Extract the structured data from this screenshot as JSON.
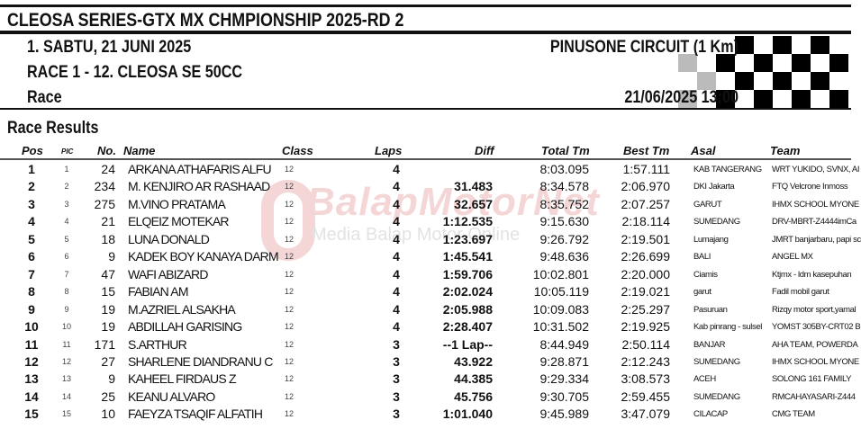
{
  "header": {
    "title": "CLEOSA SERIES-GTX MX CHMPIONSHIP 2025-RD 2",
    "day": "1. SABTU, 21 JUNI 2025",
    "race": "RACE 1 -  12. CLEOSA SE 50CC",
    "session": "Race",
    "circuit": "PINUSONE CIRCUIT (1 Km)",
    "datetime": "21/06/2025  13:00"
  },
  "section_title": "Race Results",
  "watermark": {
    "logo": "BalapMotorNet",
    "tagline": "Media Balap Motor Online"
  },
  "columns": {
    "pos": "Pos",
    "pic": "PIC",
    "no": "No.",
    "name": "Name",
    "class": "Class",
    "laps": "Laps",
    "diff": "Diff",
    "total": "Total Tm",
    "best": "Best Tm",
    "asal": "Asal",
    "team": "Team"
  },
  "rows": [
    {
      "pos": "1",
      "pic": "1",
      "no": "24",
      "name": "ARKANA ATHAFARIS ALFU",
      "class": "12",
      "laps": "4",
      "diff": "",
      "total": "8:03.095",
      "best": "1:57.111",
      "asal": "KAB TANGERANG",
      "team": "WRT YUKIDO, SVNX, AI"
    },
    {
      "pos": "2",
      "pic": "2",
      "no": "234",
      "name": "M. KENJIRO AR RASHAAD",
      "class": "12",
      "laps": "4",
      "diff": "31.483",
      "total": "8:34.578",
      "best": "2:06.970",
      "asal": "DKI Jakarta",
      "team": "FTQ Velcrone Inmoss"
    },
    {
      "pos": "3",
      "pic": "3",
      "no": "275",
      "name": "M.VINO PRATAMA",
      "class": "12",
      "laps": "4",
      "diff": "32.657",
      "total": "8:35.752",
      "best": "2:07.257",
      "asal": "GARUT",
      "team": "IHMX SCHOOL MYONE"
    },
    {
      "pos": "4",
      "pic": "4",
      "no": "21",
      "name": "ELQEIZ MOTEKAR",
      "class": "12",
      "laps": "4",
      "diff": "1:12.535",
      "total": "9:15.630",
      "best": "2:18.114",
      "asal": "SUMEDANG",
      "team": "DRV-MBRT-Z4444imCa"
    },
    {
      "pos": "5",
      "pic": "5",
      "no": "18",
      "name": "LUNA DONALD",
      "class": "12",
      "laps": "4",
      "diff": "1:23.697",
      "total": "9:26.792",
      "best": "2:19.501",
      "asal": "Lumajang",
      "team": "JMRT banjarbaru, papi sc"
    },
    {
      "pos": "6",
      "pic": "6",
      "no": "9",
      "name": "KADEK BOY KANAYA DARM",
      "class": "12",
      "laps": "4",
      "diff": "1:45.541",
      "total": "9:48.636",
      "best": "2:26.699",
      "asal": "BALI",
      "team": "ANGEL MX"
    },
    {
      "pos": "7",
      "pic": "7",
      "no": "47",
      "name": "WAFI ABIZARD",
      "class": "12",
      "laps": "4",
      "diff": "1:59.706",
      "total": "10:02.801",
      "best": "2:20.000",
      "asal": "Ciamis",
      "team": "Ktjmx - ldm kasepuhan"
    },
    {
      "pos": "8",
      "pic": "8",
      "no": "15",
      "name": "FABIAN AM",
      "class": "12",
      "laps": "4",
      "diff": "2:02.024",
      "total": "10:05.119",
      "best": "2:19.021",
      "asal": "garut",
      "team": "Fadil mobil garut"
    },
    {
      "pos": "9",
      "pic": "9",
      "no": "19",
      "name": "M.AZRIEL ALSAKHA",
      "class": "12",
      "laps": "4",
      "diff": "2:05.988",
      "total": "10:09.083",
      "best": "2:25.297",
      "asal": "Pasuruan",
      "team": "Rizqy motor sport,yamal"
    },
    {
      "pos": "10",
      "pic": "10",
      "no": "19",
      "name": "ABDILLAH GARISING",
      "class": "12",
      "laps": "4",
      "diff": "2:28.407",
      "total": "10:31.502",
      "best": "2:19.925",
      "asal": "Kab pinrang - sulsel",
      "team": "YOMST 305BY-CRT02 B"
    },
    {
      "pos": "11",
      "pic": "11",
      "no": "171",
      "name": "S.ARTHUR",
      "class": "12",
      "laps": "3",
      "diff": "--1 Lap--",
      "total": "8:44.949",
      "best": "2:50.114",
      "asal": "BANJAR",
      "team": "AHA TEAM, POWERDA"
    },
    {
      "pos": "12",
      "pic": "12",
      "no": "27",
      "name": "SHARLENE DIANDRANU C",
      "class": "12",
      "laps": "3",
      "diff": "43.922",
      "total": "9:28.871",
      "best": "2:12.243",
      "asal": "SUMEDANG",
      "team": "IHMX SCHOOL MYONE"
    },
    {
      "pos": "13",
      "pic": "13",
      "no": "9",
      "name": "KAHEEL FIRDAUS Z",
      "class": "12",
      "laps": "3",
      "diff": "44.385",
      "total": "9:29.334",
      "best": "3:08.573",
      "asal": "ACEH",
      "team": "SOLONG 161 FAMILY"
    },
    {
      "pos": "14",
      "pic": "14",
      "no": "25",
      "name": "KEANU ALVARO",
      "class": "12",
      "laps": "3",
      "diff": "45.756",
      "total": "9:30.705",
      "best": "2:59.455",
      "asal": "SUMEDANG",
      "team": "RMCAHAYASARI-Z444"
    },
    {
      "pos": "15",
      "pic": "15",
      "no": "10",
      "name": "FAEYZA TSAQIF ALFATIH",
      "class": "12",
      "laps": "3",
      "diff": "1:01.040",
      "total": "9:45.989",
      "best": "3:47.079",
      "asal": "CILACAP",
      "team": "CMG TEAM"
    }
  ]
}
